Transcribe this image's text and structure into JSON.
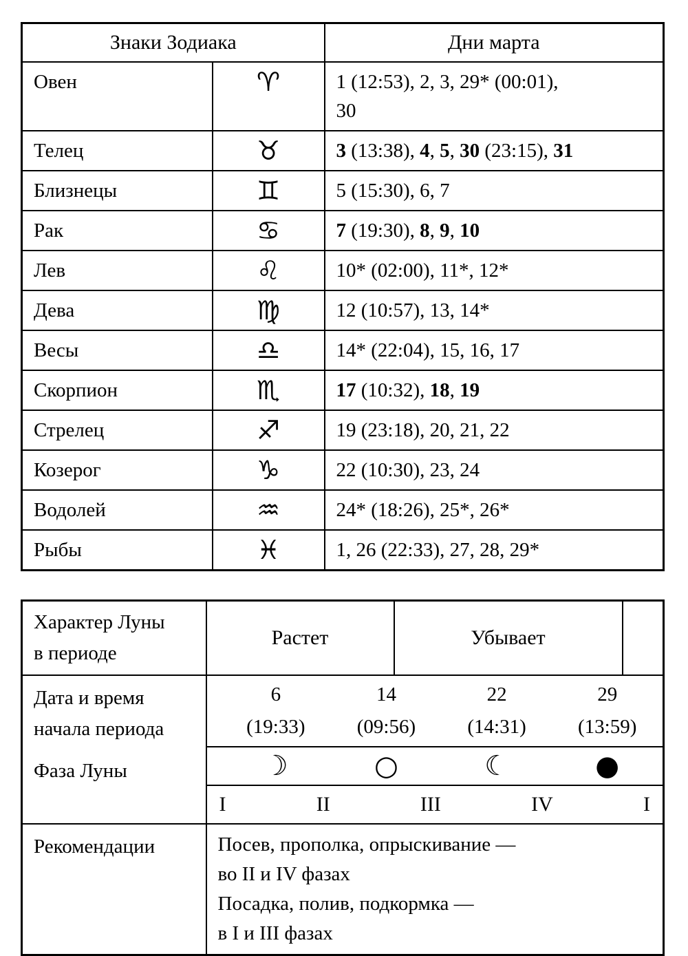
{
  "colors": {
    "text": "#000000",
    "background": "#ffffff",
    "border": "#000000"
  },
  "zodiac_table": {
    "header_signs": "Знаки Зодиака",
    "header_days": "Дни марта",
    "rows": [
      {
        "name": "Овен",
        "symbol": "♈",
        "icon": "aries-icon",
        "days": [
          {
            "t": "1 (12:53), 2, 3, 29* (00:01),\n30",
            "b": false
          }
        ]
      },
      {
        "name": "Телец",
        "symbol": "♉",
        "icon": "taurus-icon",
        "days": [
          {
            "t": "3",
            "b": true
          },
          {
            "t": " (13:38), ",
            "b": false
          },
          {
            "t": "4",
            "b": true
          },
          {
            "t": ", ",
            "b": false
          },
          {
            "t": "5",
            "b": true
          },
          {
            "t": ", ",
            "b": false
          },
          {
            "t": "30",
            "b": true
          },
          {
            "t": " (23:15), ",
            "b": false
          },
          {
            "t": "31",
            "b": true
          }
        ]
      },
      {
        "name": "Близнецы",
        "symbol": "♊",
        "icon": "gemini-icon",
        "days": [
          {
            "t": "5 (15:30), 6, 7",
            "b": false
          }
        ]
      },
      {
        "name": "Рак",
        "symbol": "♋",
        "icon": "cancer-icon",
        "days": [
          {
            "t": "7",
            "b": true
          },
          {
            "t": " (19:30), ",
            "b": false
          },
          {
            "t": "8",
            "b": true
          },
          {
            "t": ", ",
            "b": false
          },
          {
            "t": "9",
            "b": true
          },
          {
            "t": ", ",
            "b": false
          },
          {
            "t": "10",
            "b": true
          }
        ]
      },
      {
        "name": "Лев",
        "symbol": "♌",
        "icon": "leo-icon",
        "days": [
          {
            "t": "10* (02:00), 11*, 12*",
            "b": false
          }
        ]
      },
      {
        "name": "Дева",
        "symbol": "♍",
        "icon": "virgo-icon",
        "days": [
          {
            "t": "12 (10:57), 13, 14*",
            "b": false
          }
        ]
      },
      {
        "name": "Весы",
        "symbol": "♎",
        "icon": "libra-icon",
        "days": [
          {
            "t": "14* (22:04), 15, 16, 17",
            "b": false
          }
        ]
      },
      {
        "name": "Скорпион",
        "symbol": "♏",
        "icon": "scorpio-icon",
        "days": [
          {
            "t": "17",
            "b": true
          },
          {
            "t": " (10:32), ",
            "b": false
          },
          {
            "t": "18",
            "b": true
          },
          {
            "t": ", ",
            "b": false
          },
          {
            "t": "19",
            "b": true
          }
        ]
      },
      {
        "name": "Стрелец",
        "symbol": "♐",
        "icon": "sagittarius-icon",
        "days": [
          {
            "t": "19 (23:18), 20, 21, 22",
            "b": false
          }
        ]
      },
      {
        "name": "Козерог",
        "symbol": "♑",
        "icon": "capricorn-icon",
        "days": [
          {
            "t": "22 (10:30), 23, 24",
            "b": false
          }
        ]
      },
      {
        "name": "Водолей",
        "symbol": "♒",
        "icon": "aquarius-icon",
        "days": [
          {
            "t": "24* (18:26), 25*, 26*",
            "b": false
          }
        ]
      },
      {
        "name": "Рыбы",
        "symbol": "♓",
        "icon": "pisces-icon",
        "days": [
          {
            "t": "1, 26 (22:33), 27, 28, 29*",
            "b": false
          }
        ]
      }
    ]
  },
  "moon_table": {
    "character_label": "Характер Луны\nв периоде",
    "waxing_label": "Растет",
    "waning_label": "Убывает",
    "date_label": "Дата и время\nначала периода",
    "phase_label": "Фаза Луны",
    "dates": [
      {
        "day": "6",
        "time": "(19:33)"
      },
      {
        "day": "14",
        "time": "(09:56)"
      },
      {
        "day": "22",
        "time": "(14:31)"
      },
      {
        "day": "29",
        "time": "(13:59)"
      }
    ],
    "phases": [
      {
        "symbol": "☽",
        "icon": "first-quarter-moon-icon"
      },
      {
        "symbol": "○",
        "icon": "full-moon-icon"
      },
      {
        "symbol": "☾",
        "icon": "last-quarter-moon-icon"
      },
      {
        "symbol": "●",
        "icon": "new-moon-icon"
      }
    ],
    "quarters": [
      "I",
      "II",
      "III",
      "IV",
      "I"
    ],
    "recommendations_label": "Рекомендации",
    "recommendations": [
      "Посев, прополка, опрыскивание —\nво II и IV фазах",
      "Посадка, полив, подкормка —\nв I и III фазах"
    ]
  }
}
